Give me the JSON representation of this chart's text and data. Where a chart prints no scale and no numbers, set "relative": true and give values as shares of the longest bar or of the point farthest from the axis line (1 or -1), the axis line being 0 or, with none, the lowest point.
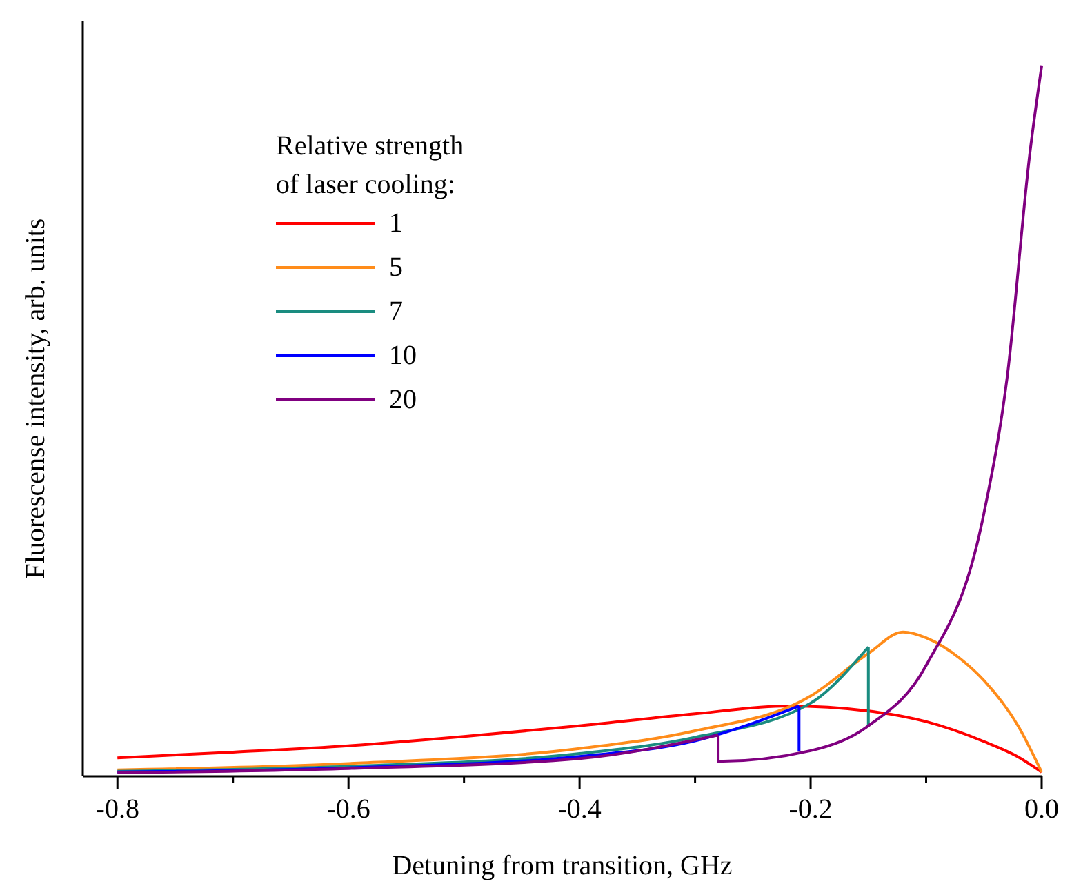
{
  "chart_data": {
    "type": "line",
    "relative": true,
    "xlabel": "Detuning from transition, GHz",
    "ylabel": "Fluorescense intensity, arb. units",
    "legend_title": "Relative strength\nof laser cooling:",
    "legend": "top left",
    "xlim": [
      -0.83,
      0.0
    ],
    "xticks": [
      -0.8,
      {
        "value": -0.7,
        "label": null
      },
      -0.6,
      {
        "value": -0.5,
        "label": null
      },
      -0.4,
      {
        "value": -0.3,
        "label": null
      },
      -0.2,
      {
        "value": -0.1,
        "label": null
      },
      {
        "value": 0,
        "label": "0.0"
      }
    ],
    "series": [
      {
        "name": "1",
        "color": "#ff0000",
        "x": [
          -0.8,
          -0.7,
          -0.6,
          -0.5,
          -0.4,
          -0.3,
          -0.22,
          -0.15,
          -0.1,
          -0.05,
          -0.02,
          0
        ],
        "values": [
          0.026,
          0.034,
          0.043,
          0.056,
          0.071,
          0.088,
          0.099,
          0.092,
          0.077,
          0.049,
          0.027,
          0.006
        ]
      },
      {
        "name": "5",
        "color": "#ff8c1a",
        "x": [
          -0.8,
          -0.6,
          -0.4,
          -0.3,
          -0.2,
          -0.15,
          -0.12,
          -0.1,
          -0.07,
          -0.05,
          -0.02,
          0
        ],
        "values": [
          0.009,
          0.018,
          0.039,
          0.064,
          0.113,
          0.173,
          0.203,
          0.195,
          0.165,
          0.135,
          0.07,
          0.006
        ]
      },
      {
        "name": "7",
        "color": "#1a8c80",
        "x": [
          -0.8,
          -0.6,
          -0.4,
          -0.3,
          -0.2,
          -0.15,
          -0.15
        ],
        "values": [
          0.007,
          0.014,
          0.032,
          0.055,
          0.103,
          0.182,
          0.071
        ]
      },
      {
        "name": "10",
        "color": "#0000ff",
        "x": [
          -0.8,
          -0.6,
          -0.4,
          -0.3,
          -0.21,
          -0.21
        ],
        "values": [
          0.006,
          0.012,
          0.028,
          0.05,
          0.099,
          0.036
        ]
      },
      {
        "name": "20",
        "color": "#800080",
        "x": [
          -0.8,
          -0.6,
          -0.4,
          -0.28,
          -0.28,
          -0.2,
          -0.15,
          -0.1,
          -0.05,
          -0.03,
          -0.01,
          0
        ],
        "values": [
          0.005,
          0.011,
          0.025,
          0.058,
          0.021,
          0.036,
          0.071,
          0.156,
          0.37,
          0.56,
          0.88,
          1
        ]
      }
    ]
  }
}
